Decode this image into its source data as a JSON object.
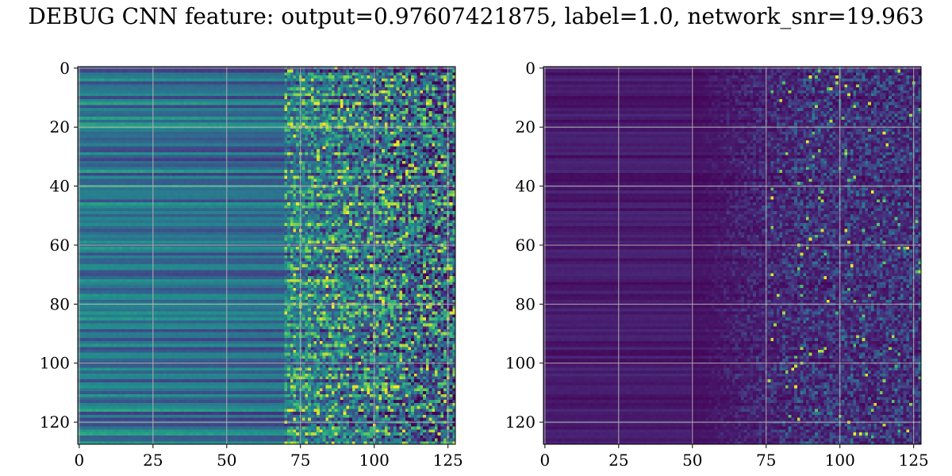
{
  "figure": {
    "title": "DEBUG CNN feature: output=0.97607421875, label=1.0, network_snr=19.963"
  },
  "chart_data": [
    {
      "type": "heatmap",
      "colormap": "viridis",
      "rows": 128,
      "cols": 128,
      "value_range": [
        0,
        1
      ],
      "xlim": [
        -0.5,
        127.5
      ],
      "ylim": [
        127.5,
        -0.5
      ],
      "xticks": [
        0,
        25,
        50,
        75,
        100,
        125
      ],
      "yticks": [
        0,
        20,
        40,
        60,
        80,
        100,
        120
      ],
      "grid": true,
      "description_of_values": "low-variance row stripes for columns 0-70, noisy bright cells for columns 70-127"
    },
    {
      "type": "heatmap",
      "colormap": "viridis",
      "rows": 128,
      "cols": 128,
      "value_range": [
        0,
        1
      ],
      "xlim": [
        -0.5,
        127.5
      ],
      "ylim": [
        127.5,
        -0.5
      ],
      "xticks": [
        0,
        25,
        50,
        75,
        100,
        125
      ],
      "yticks": [
        0,
        20,
        40,
        60,
        80,
        100,
        120
      ],
      "grid": true,
      "description_of_values": "mostly dark purple for columns 0-50, sparse bright speckles for columns 60-127"
    }
  ]
}
